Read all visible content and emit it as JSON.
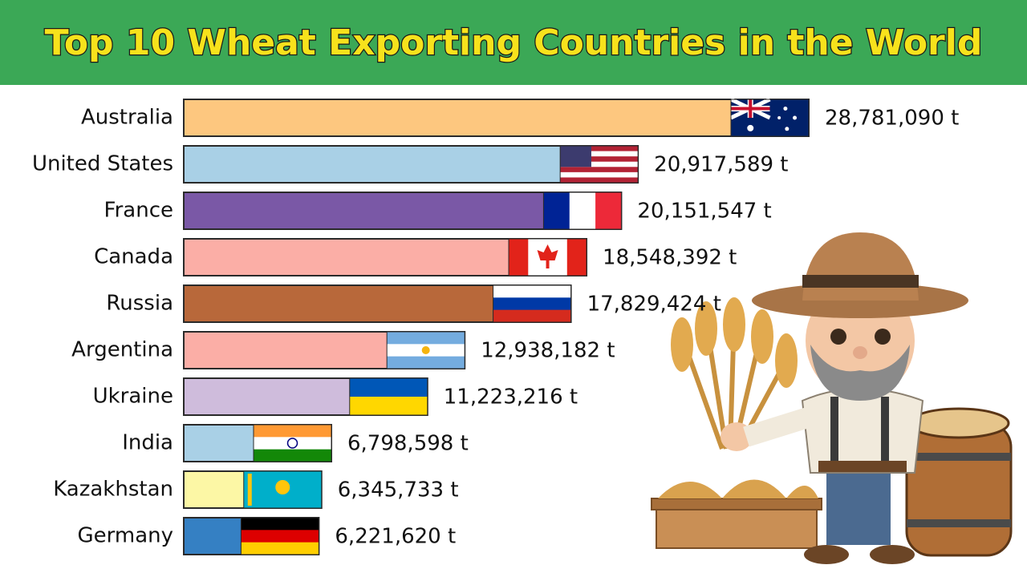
{
  "chart_data": {
    "type": "bar",
    "orientation": "horizontal",
    "title": "Top 10 Wheat Exporting Countries in the World",
    "categories": [
      "Australia",
      "United States",
      "France",
      "Canada",
      "Russia",
      "Argentina",
      "Ukraine",
      "India",
      "Kazakhstan",
      "Germany"
    ],
    "values": [
      28781090,
      20917589,
      20151547,
      18548392,
      17829424,
      12938182,
      11223216,
      6798598,
      6345733,
      6221620
    ],
    "value_labels": [
      "28,781,090 t",
      "20,917,589 t",
      "20,151,547 t",
      "18,548,392 t",
      "17,829,424 t",
      "12,938,182 t",
      "11,223,216 t",
      "6,798,598 t",
      "6,345,733 t",
      "6,221,620 t"
    ],
    "colors": [
      "#fdc77f",
      "#a9d0e6",
      "#7a58a6",
      "#fbaea6",
      "#b8683a",
      "#fbaea6",
      "#cfbcdc",
      "#a9d0e6",
      "#fcf7a5",
      "#3580c3"
    ]
  }
}
